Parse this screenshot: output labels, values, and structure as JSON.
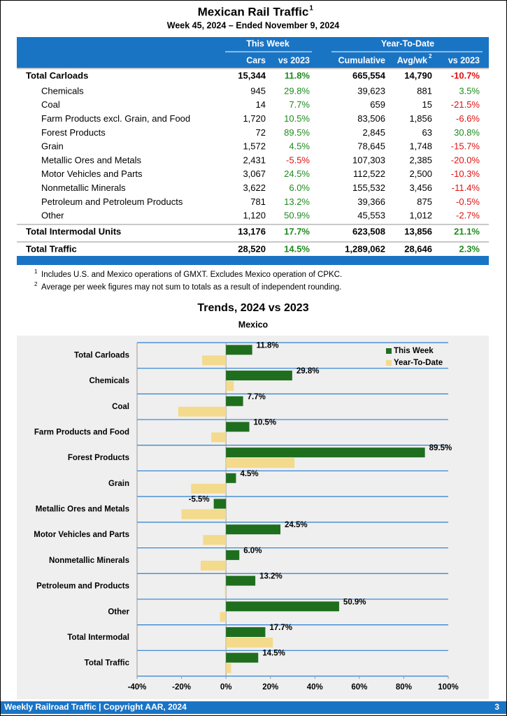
{
  "header": {
    "title": "Mexican Rail Traffic",
    "title_note": "1",
    "subtitle": "Week 45, 2024 – Ended November 9, 2024"
  },
  "table": {
    "groups": [
      "This Week",
      "Year-To-Date"
    ],
    "columns": [
      "Cars",
      "vs 2023",
      "Cumulative",
      "Avg/wk",
      "vs 2023"
    ],
    "avg_note": "2",
    "rows": [
      [
        "Total Carloads",
        "15,344",
        "11.8%",
        "665,554",
        "14,790",
        "-10.7%"
      ],
      [
        "Chemicals",
        "945",
        "29.8%",
        "39,623",
        "881",
        "3.5%"
      ],
      [
        "Coal",
        "14",
        "7.7%",
        "659",
        "15",
        "-21.5%"
      ],
      [
        "Farm Products excl. Grain, and Food",
        "1,720",
        "10.5%",
        "83,506",
        "1,856",
        "-6.6%"
      ],
      [
        "Forest Products",
        "72",
        "89.5%",
        "2,845",
        "63",
        "30.8%"
      ],
      [
        "Grain",
        "1,572",
        "4.5%",
        "78,645",
        "1,748",
        "-15.7%"
      ],
      [
        "Metallic Ores and Metals",
        "2,431",
        "-5.5%",
        "107,303",
        "2,385",
        "-20.0%"
      ],
      [
        "Motor Vehicles and Parts",
        "3,067",
        "24.5%",
        "112,522",
        "2,500",
        "-10.3%"
      ],
      [
        "Nonmetallic Minerals",
        "3,622",
        "6.0%",
        "155,532",
        "3,456",
        "-11.4%"
      ],
      [
        "Petroleum and Petroleum Products",
        "781",
        "13.2%",
        "39,366",
        "875",
        "-0.5%"
      ],
      [
        "Other",
        "1,120",
        "50.9%",
        "45,553",
        "1,012",
        "-2.7%"
      ],
      [
        "Total Intermodal Units",
        "13,176",
        "17.7%",
        "623,508",
        "13,856",
        "21.1%"
      ],
      [
        "Total Traffic",
        "28,520",
        "14.5%",
        "1,289,062",
        "28,646",
        "2.3%"
      ]
    ]
  },
  "footnotes": [
    {
      "mark": "1",
      "text": "Includes U.S. and Mexico operations of GMXT. Excludes Mexico operation of CPKC."
    },
    {
      "mark": "2",
      "text": "Average per week figures may not sum to totals as a result of independent rounding."
    }
  ],
  "chart_data": {
    "type": "bar",
    "orientation": "horizontal",
    "title": "Trends, 2024 vs 2023",
    "subtitle": "Mexico",
    "categories": [
      "Total Carloads",
      "Chemicals",
      "Coal",
      "Farm Products and Food",
      "Forest Products",
      "Grain",
      "Metallic Ores and Metals",
      "Motor Vehicles and Parts",
      "Nonmetallic Minerals",
      "Petroleum and Products",
      "Other",
      "Total Intermodal",
      "Total Traffic"
    ],
    "series": [
      {
        "name": "This Week",
        "color": "#1e6e1e",
        "values": [
          11.8,
          29.8,
          7.7,
          10.5,
          89.5,
          4.5,
          -5.5,
          24.5,
          6.0,
          13.2,
          50.9,
          17.7,
          14.5
        ],
        "value_labels": [
          "11.8%",
          "29.8%",
          "7.7%",
          "10.5%",
          "89.5%",
          "4.5%",
          "-5.5%",
          "24.5%",
          "6.0%",
          "13.2%",
          "50.9%",
          "17.7%",
          "14.5%"
        ]
      },
      {
        "name": "Year-To-Date",
        "color": "#f3da8c",
        "values": [
          -10.7,
          3.5,
          -21.5,
          -6.6,
          30.8,
          -15.7,
          -20.0,
          -10.3,
          -11.4,
          -0.5,
          -2.7,
          21.1,
          2.3
        ]
      }
    ],
    "xlim": [
      -40,
      100
    ],
    "xticks": [
      {
        "value": -40,
        "label": "-40%"
      },
      {
        "value": -20,
        "label": "-20%"
      },
      {
        "value": 0,
        "label": "0%"
      },
      {
        "value": 20,
        "label": "20%"
      },
      {
        "value": 40,
        "label": "40%"
      },
      {
        "value": 60,
        "label": "60%"
      },
      {
        "value": 80,
        "label": "80%"
      },
      {
        "value": 100,
        "label": "100%"
      }
    ],
    "legend": "top-right"
  },
  "footer": {
    "text": "Weekly Railroad Traffic | Copyright AAR, 2024",
    "page": "3"
  }
}
